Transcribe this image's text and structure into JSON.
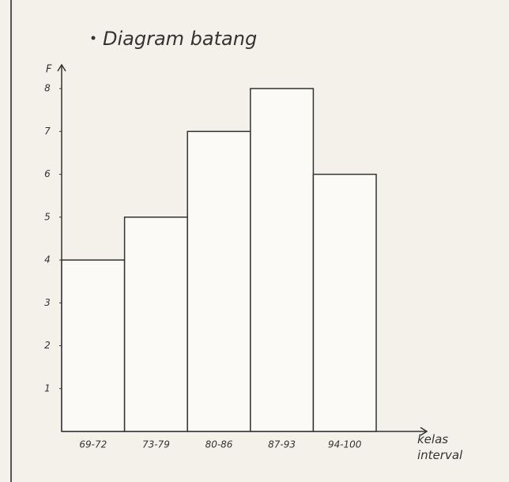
{
  "chart_data": {
    "type": "bar",
    "title": "Diagram batang",
    "y_label": "F",
    "x_label": "kelas interval",
    "categories": [
      "69-72",
      "73-79",
      "80-86",
      "87-93",
      "94-100"
    ],
    "values": [
      4,
      5,
      7,
      8,
      6
    ],
    "color": "#fbfaf6",
    "ylim": [
      0,
      8.5
    ],
    "yticks": [
      1,
      2,
      3,
      4,
      5,
      6,
      7,
      8
    ],
    "grid": false
  }
}
